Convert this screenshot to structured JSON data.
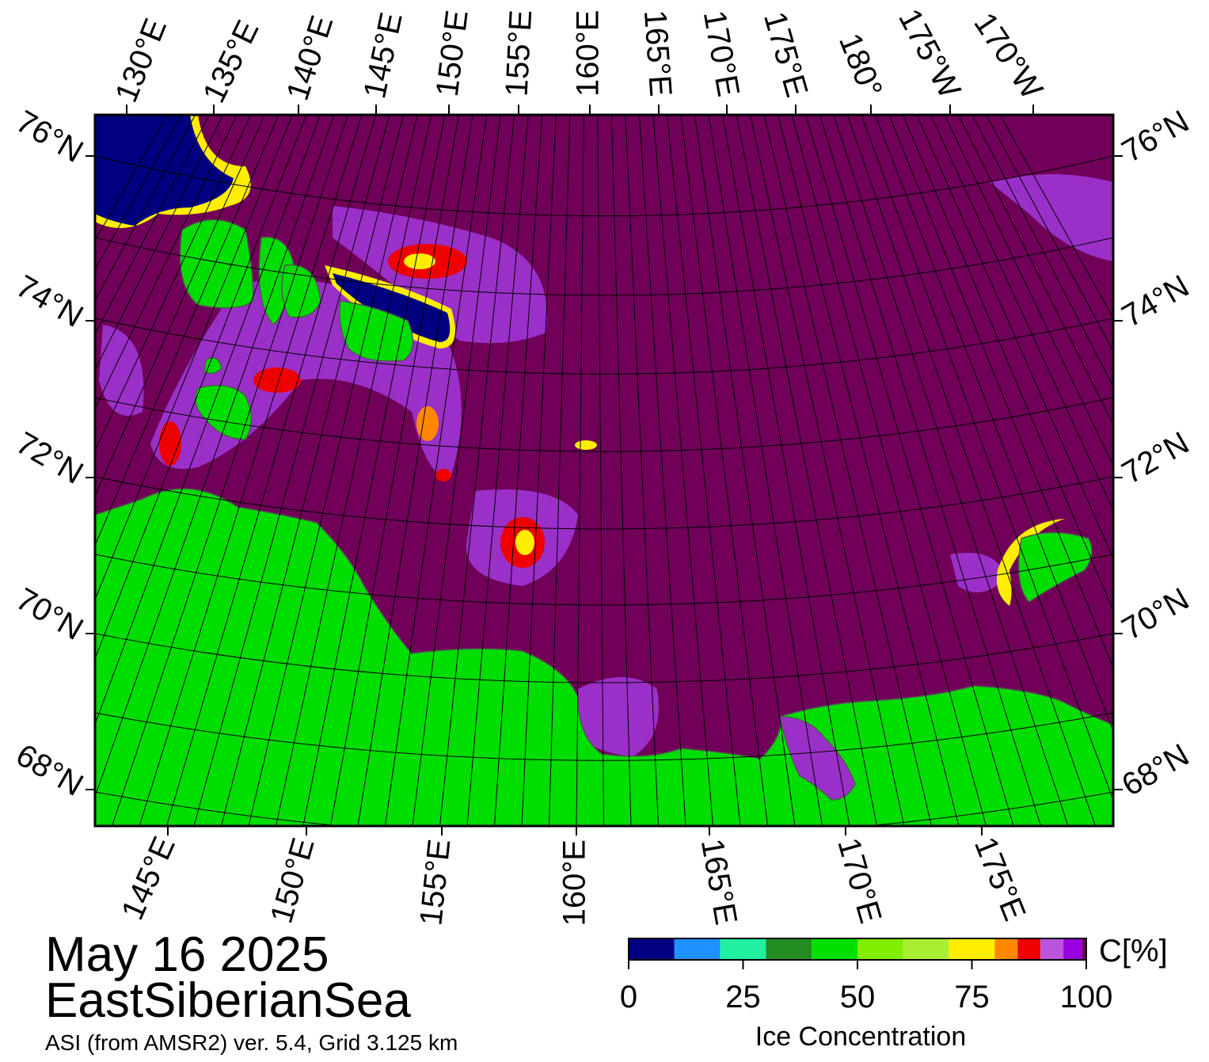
{
  "map": {
    "top_labels": [
      "130°E",
      "135°E",
      "140°E",
      "145°E",
      "150°E",
      "155°E",
      "160°E",
      "165°E",
      "170°E",
      "175°E",
      "180°",
      "175°W",
      "170°W"
    ],
    "bottom_labels": [
      "145°E",
      "150°E",
      "155°E",
      "160°E",
      "165°E",
      "170°E",
      "175°E"
    ],
    "left_labels": [
      "76°N",
      "74°N",
      "72°N",
      "70°N",
      "68°N"
    ],
    "right_labels": [
      "76°N",
      "74°N",
      "72°N",
      "70°N",
      "68°N"
    ]
  },
  "caption": {
    "date": "May 16 2025",
    "region": "EastSiberianSea",
    "source": "ASI (from AMSR2) ver. 5.4,  Grid 3.125 km"
  },
  "colorbar": {
    "unit": "C[%]",
    "label": "Ice Concentration",
    "range": [
      0,
      100
    ],
    "ticks": [
      0,
      25,
      50,
      75,
      100
    ],
    "bounds": [
      0,
      10,
      20,
      30,
      40,
      50,
      60,
      70,
      80,
      85,
      90,
      95,
      99,
      100
    ],
    "colors": [
      "#000080",
      "#1e90ff",
      "#20f0a0",
      "#228b22",
      "#00e000",
      "#7fee00",
      "#aaee33",
      "#ffee00",
      "#ff8800",
      "#ee0000",
      "#bb55dd",
      "#9900dd",
      "#700060"
    ]
  }
}
